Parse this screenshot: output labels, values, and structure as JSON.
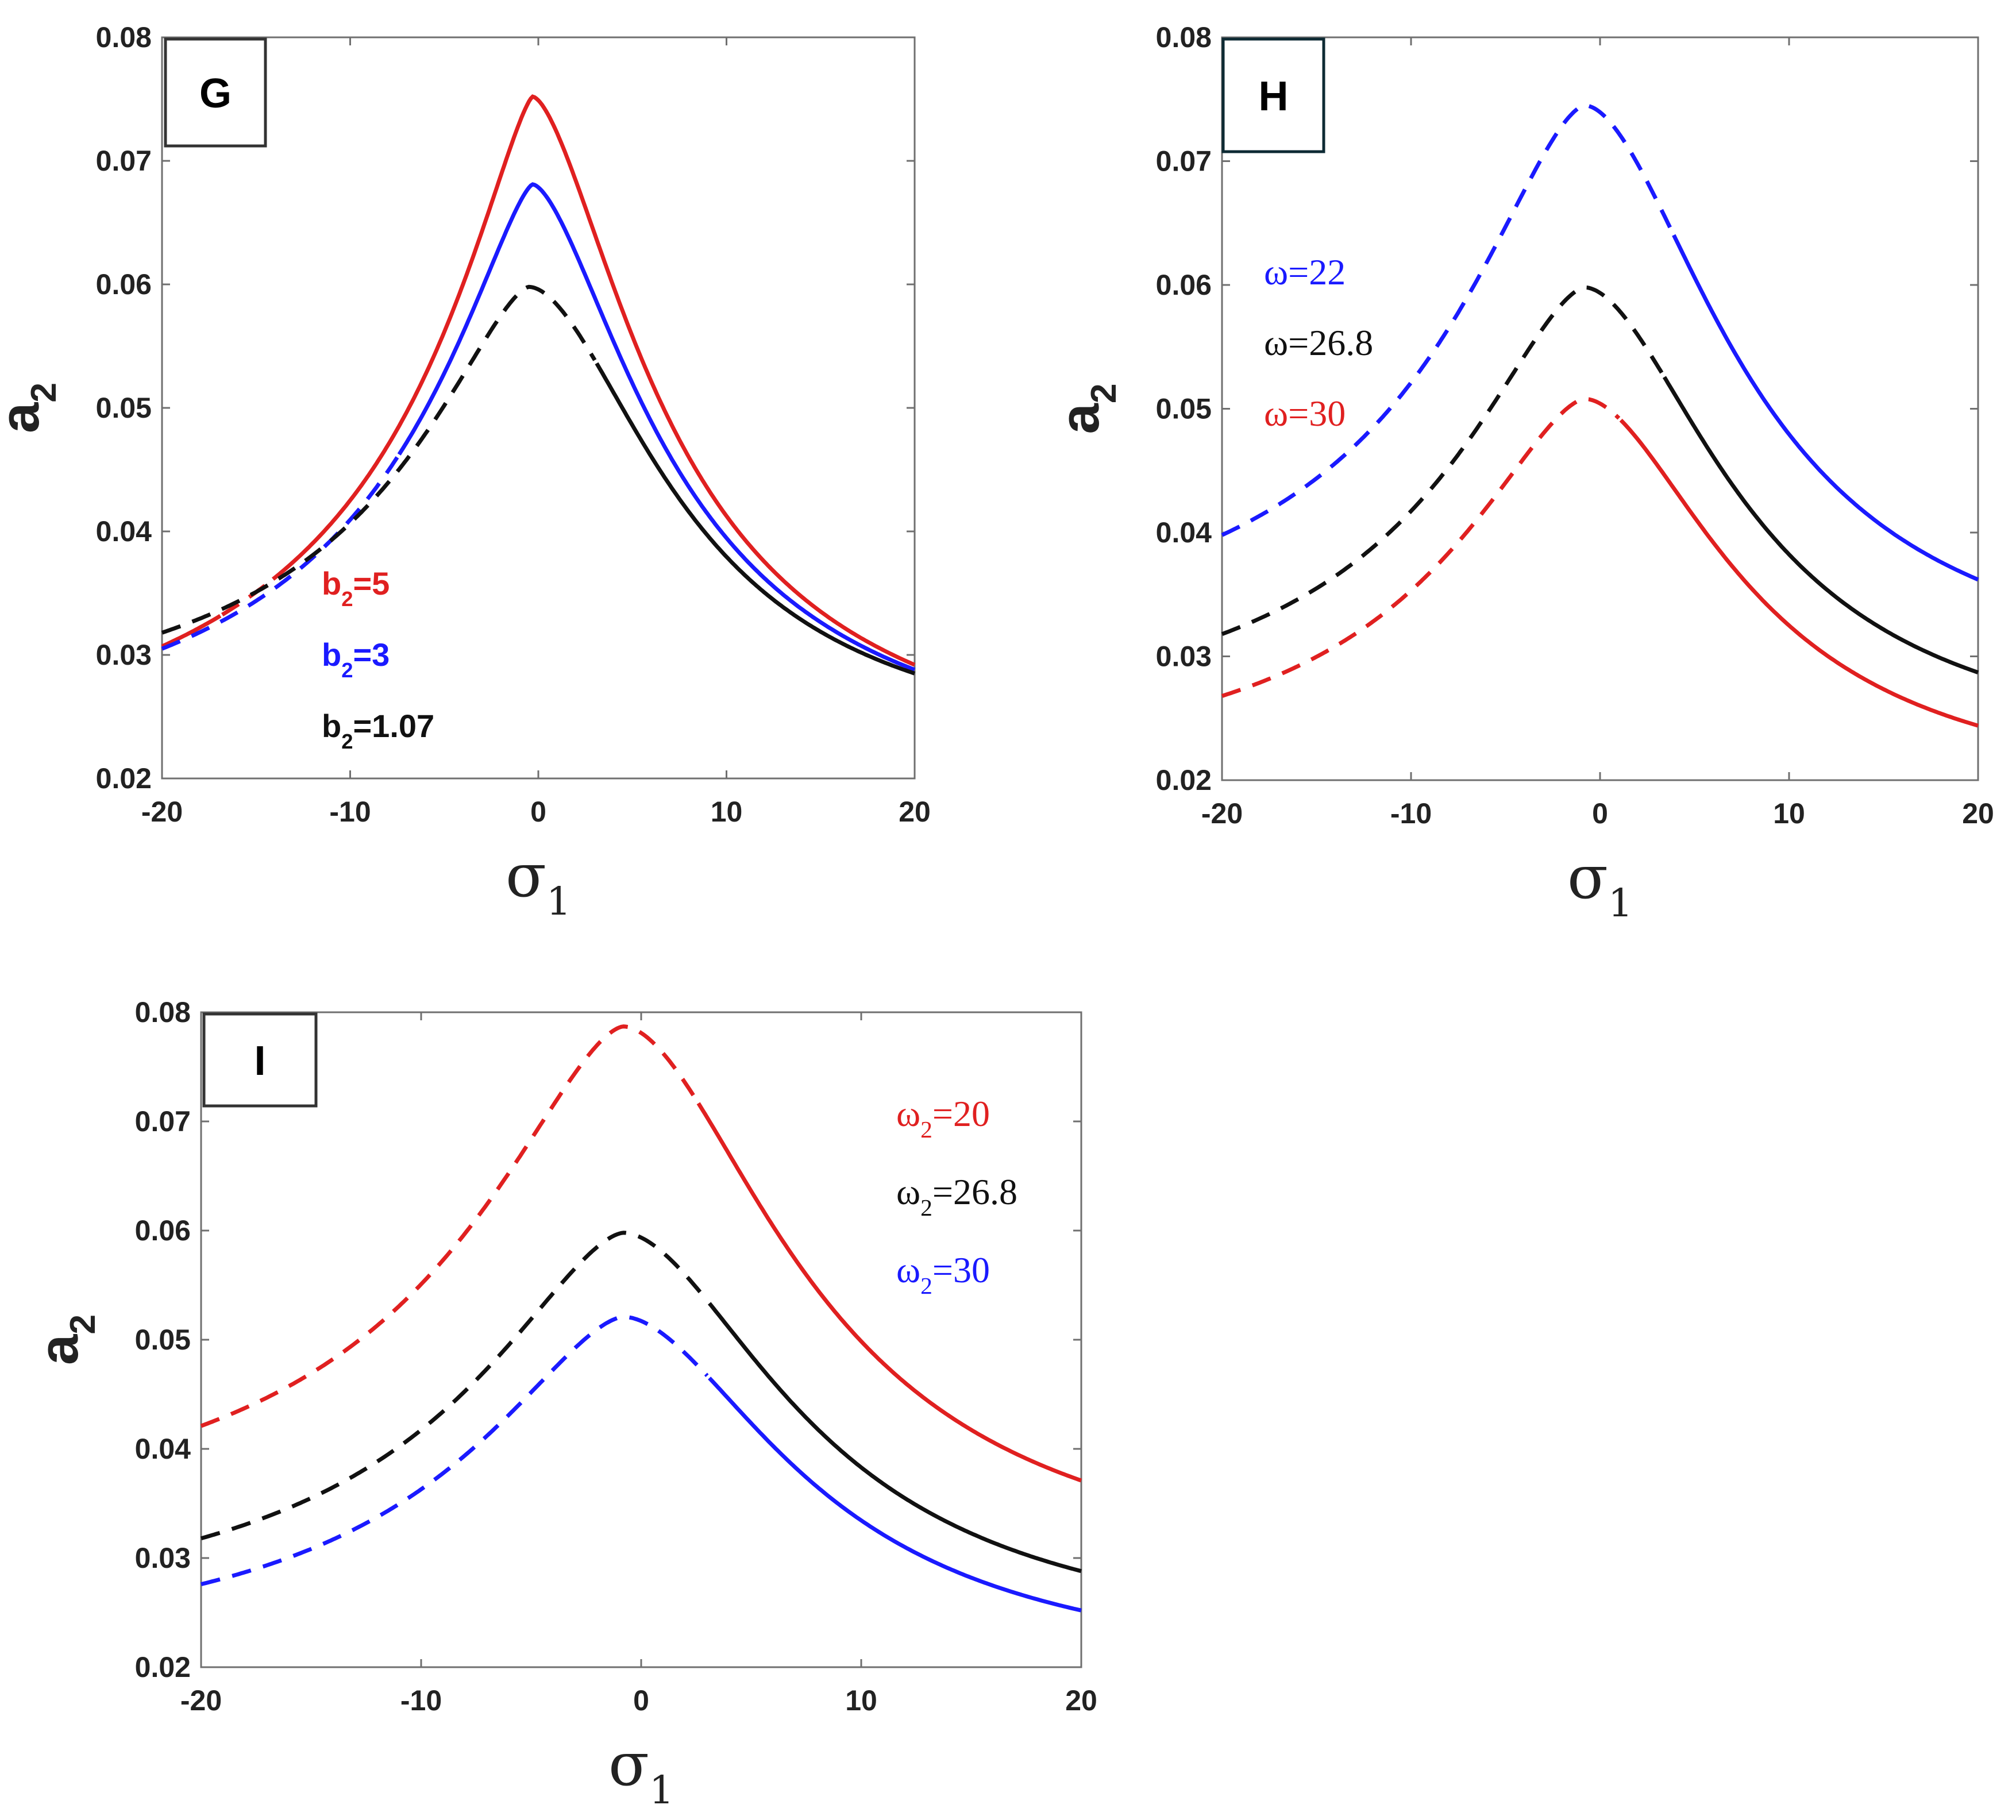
{
  "figure": {
    "description": "Frequency response curves of a2 versus sigma1"
  },
  "chart_data": [
    {
      "type": "line",
      "panel": "G",
      "xlabel": "σ1",
      "ylabel": "a2",
      "xlim": [
        -20,
        20
      ],
      "ylim": [
        0.02,
        0.08
      ],
      "x_ticks": [
        "-20",
        "-10",
        "0",
        "10",
        "20"
      ],
      "y_ticks": [
        "0.02",
        "0.03",
        "0.04",
        "0.05",
        "0.06",
        "0.07",
        "0.08"
      ],
      "legend": [
        {
          "prefix": "b",
          "sub": "2",
          "suffix": "=5",
          "color": "#e02020"
        },
        {
          "prefix": "b",
          "sub": "2",
          "suffix": "=3",
          "color": "#1a1aff"
        },
        {
          "prefix": "b",
          "sub": "2",
          "suffix": "=1.07",
          "color": "#111111"
        }
      ],
      "series": [
        {
          "name": "b2=5",
          "color": "#e02020",
          "peak_x": -0.3,
          "peak": 0.0752,
          "left": 0.0307,
          "right": 0.0292,
          "width": 7.9,
          "p_left": 1.35,
          "p_right": 1.6,
          "dashed_range": [
            -16.8,
            -14.2
          ]
        },
        {
          "name": "b2=3",
          "color": "#1a1aff",
          "peak_x": -0.3,
          "peak": 0.0681,
          "left": 0.0305,
          "right": 0.0288,
          "width": 8.2,
          "p_left": 1.4,
          "p_right": 1.6,
          "dashed_range": [
            -20,
            -7.5
          ]
        },
        {
          "name": "b2=1.07",
          "color": "#111111",
          "peak_x": -0.5,
          "peak": 0.0598,
          "left": 0.0318,
          "right": 0.0285,
          "width": 9.0,
          "p_left": 1.5,
          "p_right": 1.8,
          "dashed_range": [
            -20,
            3.0
          ]
        }
      ]
    },
    {
      "type": "line",
      "panel": "H",
      "xlabel": "σ1",
      "ylabel": "a2",
      "xlim": [
        -20,
        20
      ],
      "ylim": [
        0.02,
        0.08
      ],
      "x_ticks": [
        "-20",
        "-10",
        "0",
        "10",
        "20"
      ],
      "y_ticks": [
        "0.02",
        "0.03",
        "0.04",
        "0.05",
        "0.06",
        "0.07",
        "0.08"
      ],
      "legend": [
        {
          "prefix": "ω",
          "sub": "",
          "suffix": "=22",
          "color": "#1a1aff"
        },
        {
          "prefix": "ω",
          "sub": "",
          "suffix": "=26.8",
          "color": "#111111"
        },
        {
          "prefix": "ω",
          "sub": "",
          "suffix": "=30",
          "color": "#e02020"
        }
      ],
      "series": [
        {
          "name": "ω=22",
          "color": "#1a1aff",
          "peak_x": -0.8,
          "peak": 0.0745,
          "left": 0.0398,
          "right": 0.0362,
          "width": 9.5,
          "p_left": 1.6,
          "p_right": 1.8,
          "dashed_range": [
            -20,
            3.8
          ]
        },
        {
          "name": "ω=26.8",
          "color": "#111111",
          "peak_x": -0.8,
          "peak": 0.0598,
          "left": 0.0318,
          "right": 0.0287,
          "width": 9.5,
          "p_left": 1.6,
          "p_right": 1.8,
          "dashed_range": [
            -20,
            3.3
          ]
        },
        {
          "name": "ω=30",
          "color": "#e02020",
          "peak_x": -0.8,
          "peak": 0.0508,
          "left": 0.0268,
          "right": 0.0244,
          "width": 9.5,
          "p_left": 1.6,
          "p_right": 1.8,
          "dashed_range": [
            -20,
            1.0
          ]
        }
      ]
    },
    {
      "type": "line",
      "panel": "I",
      "xlabel": "σ1",
      "ylabel": "a2",
      "xlim": [
        -20,
        20
      ],
      "ylim": [
        0.02,
        0.08
      ],
      "x_ticks": [
        "-20",
        "-10",
        "0",
        "10",
        "20"
      ],
      "y_ticks": [
        "0.02",
        "0.03",
        "0.04",
        "0.05",
        "0.06",
        "0.07",
        "0.08"
      ],
      "legend": [
        {
          "prefix": "ω",
          "sub": "2",
          "suffix": "=20",
          "color": "#e02020"
        },
        {
          "prefix": "ω",
          "sub": "2",
          "suffix": "=26.8",
          "color": "#111111"
        },
        {
          "prefix": "ω",
          "sub": "2",
          "suffix": "=30",
          "color": "#1a1aff"
        }
      ],
      "series": [
        {
          "name": "ω2=20",
          "color": "#e02020",
          "peak_x": -0.8,
          "peak": 0.0787,
          "left": 0.0421,
          "right": 0.0371,
          "width": 9.5,
          "p_left": 1.6,
          "p_right": 1.8,
          "dashed_range": [
            -20,
            2.5
          ]
        },
        {
          "name": "ω2=26.8",
          "color": "#111111",
          "peak_x": -0.8,
          "peak": 0.0598,
          "left": 0.0318,
          "right": 0.0288,
          "width": 9.5,
          "p_left": 1.6,
          "p_right": 1.8,
          "dashed_range": [
            -20,
            3.0
          ]
        },
        {
          "name": "ω2=30",
          "color": "#1a1aff",
          "peak_x": -0.8,
          "peak": 0.0521,
          "left": 0.0276,
          "right": 0.0252,
          "width": 9.5,
          "p_left": 1.6,
          "p_right": 1.8,
          "dashed_range": [
            -20,
            3.0
          ]
        }
      ]
    }
  ]
}
